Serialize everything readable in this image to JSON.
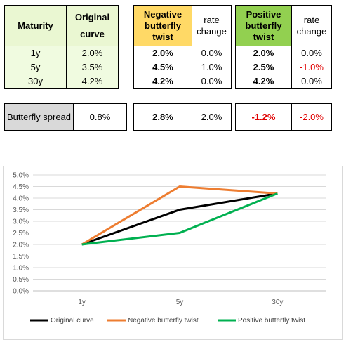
{
  "table_main": {
    "headers": {
      "maturity": "Maturity",
      "original": "Original curve",
      "neg": "Negative butterfly twist",
      "neg_change": "rate change",
      "pos": "Positive butterfly twist",
      "pos_change": "rate change"
    },
    "rows": [
      {
        "maturity": "1y",
        "original": "2.0%",
        "neg": "2.0%",
        "neg_change": "0.0%",
        "pos": "2.0%",
        "pos_change": "0.0%"
      },
      {
        "maturity": "5y",
        "original": "3.5%",
        "neg": "4.5%",
        "neg_change": "1.0%",
        "pos": "2.5%",
        "pos_change": "-1.0%"
      },
      {
        "maturity": "30y",
        "original": "4.2%",
        "neg": "4.2%",
        "neg_change": "0.0%",
        "pos": "4.2%",
        "pos_change": "0.0%"
      }
    ]
  },
  "table_spread": {
    "label": "Butterfly spread",
    "original": "0.8%",
    "neg": "2.8%",
    "neg_change": "2.0%",
    "pos": "-1.2%",
    "pos_change": "-2.0%"
  },
  "colors": {
    "original": "#000000",
    "negative": "#ed7d31",
    "positive": "#00b050",
    "red_text": "#e00000"
  },
  "chart_data": {
    "type": "line",
    "categories": [
      "1y",
      "5y",
      "30y"
    ],
    "y_ticks": [
      "0.0%",
      "0.5%",
      "1.0%",
      "1.5%",
      "2.0%",
      "2.5%",
      "3.0%",
      "3.5%",
      "4.0%",
      "4.5%",
      "5.0%"
    ],
    "ylim": [
      0,
      5
    ],
    "grid": true,
    "legend_position": "bottom",
    "series": [
      {
        "name": "Original curve",
        "values": [
          2.0,
          3.5,
          4.2
        ],
        "color": "#000000"
      },
      {
        "name": "Negative butterfly twist",
        "values": [
          2.0,
          4.5,
          4.2
        ],
        "color": "#ed7d31"
      },
      {
        "name": "Positive butterfly twist",
        "values": [
          2.0,
          2.5,
          4.2
        ],
        "color": "#00b050"
      }
    ]
  }
}
